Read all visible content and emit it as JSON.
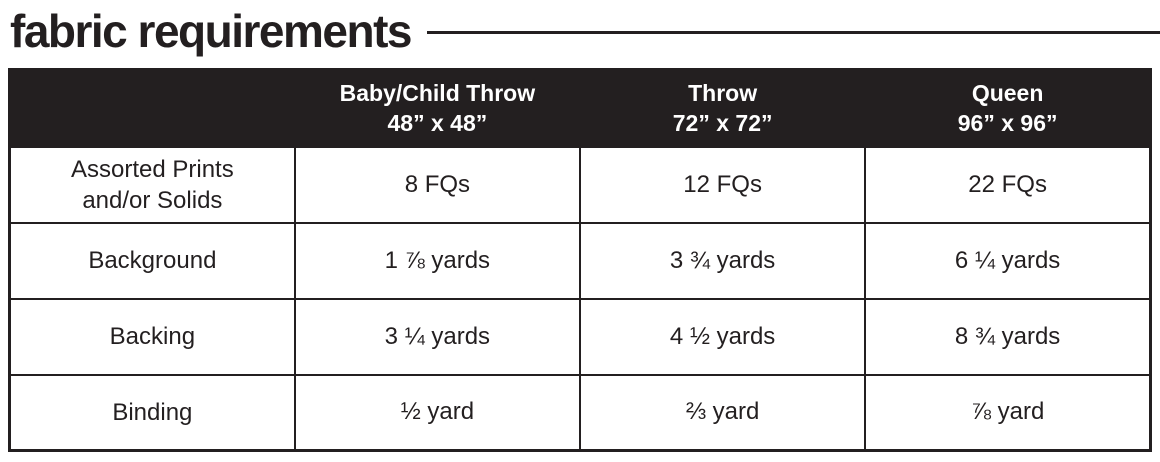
{
  "page": {
    "title": "fabric requirements"
  },
  "colors": {
    "ink": "#231f20",
    "header_bg": "#231f20",
    "header_text": "#ffffff",
    "page_bg": "#ffffff"
  },
  "table": {
    "header": {
      "corner": "",
      "columns": [
        {
          "name": "Baby/Child Throw",
          "size": "48” x 48”"
        },
        {
          "name": "Throw",
          "size": "72” x 72”"
        },
        {
          "name": "Queen",
          "size": "96” x 96”"
        }
      ]
    },
    "rows": [
      {
        "label": "Assorted Prints\nand/or Solids",
        "values": [
          "8 FQs",
          "12 FQs",
          "22 FQs"
        ]
      },
      {
        "label": "Background",
        "values": [
          "1 ⅞ yards",
          "3 ¾ yards",
          "6 ¼ yards"
        ]
      },
      {
        "label": "Backing",
        "values": [
          "3 ¼ yards",
          "4 ½ yards",
          "8 ¾ yards"
        ]
      },
      {
        "label": "Binding",
        "values": [
          "½ yard",
          "⅔ yard",
          "⅞ yard"
        ]
      }
    ]
  }
}
